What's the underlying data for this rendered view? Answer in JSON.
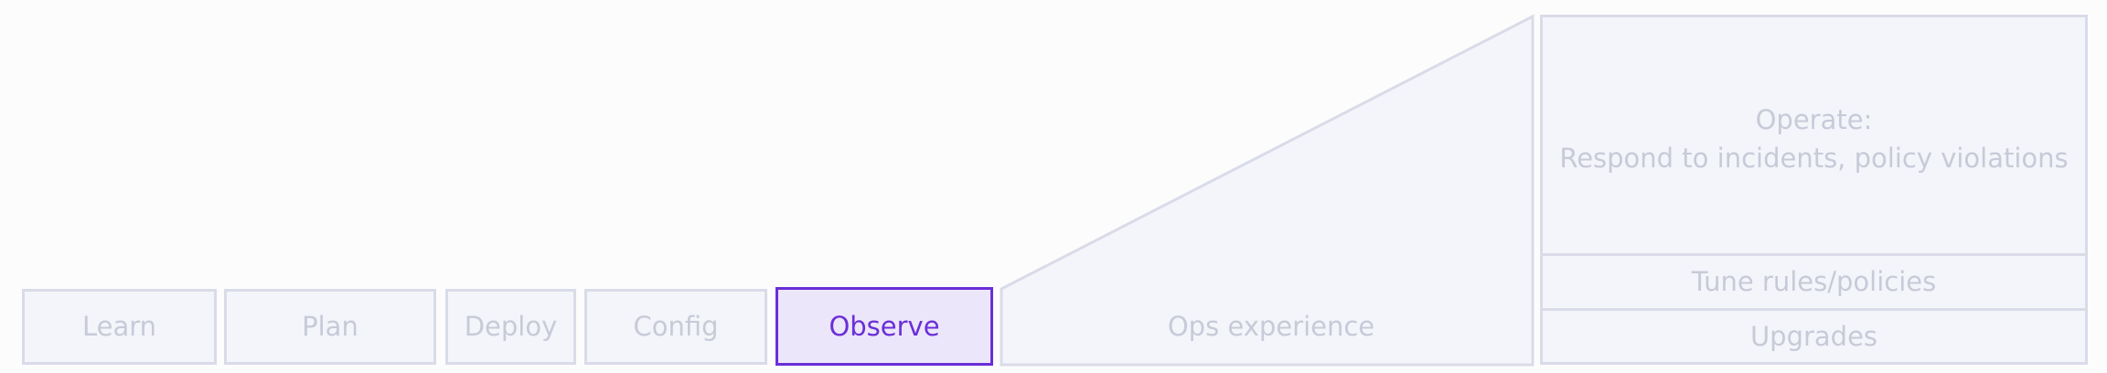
{
  "stages": [
    {
      "id": "learn",
      "label": "Learn",
      "active": false
    },
    {
      "id": "plan",
      "label": "Plan",
      "active": false
    },
    {
      "id": "deploy",
      "label": "Deploy",
      "active": false
    },
    {
      "id": "config",
      "label": "Config",
      "active": false
    },
    {
      "id": "observe",
      "label": "Observe",
      "active": true
    }
  ],
  "ops_experience": {
    "label": "Ops experience"
  },
  "ops_panel": {
    "operate_title": "Operate:",
    "operate_desc": "Respond to incidents, policy violations",
    "tune": "Tune rules/policies",
    "upgrades": "Upgrades"
  },
  "colors": {
    "inactive_border": "#d9dbe8",
    "inactive_fill": "#f4f5fa",
    "inactive_text": "#c7cad8",
    "active_border": "#6a2fd6",
    "active_fill": "#ece6fb",
    "active_text": "#6a2fd6"
  }
}
